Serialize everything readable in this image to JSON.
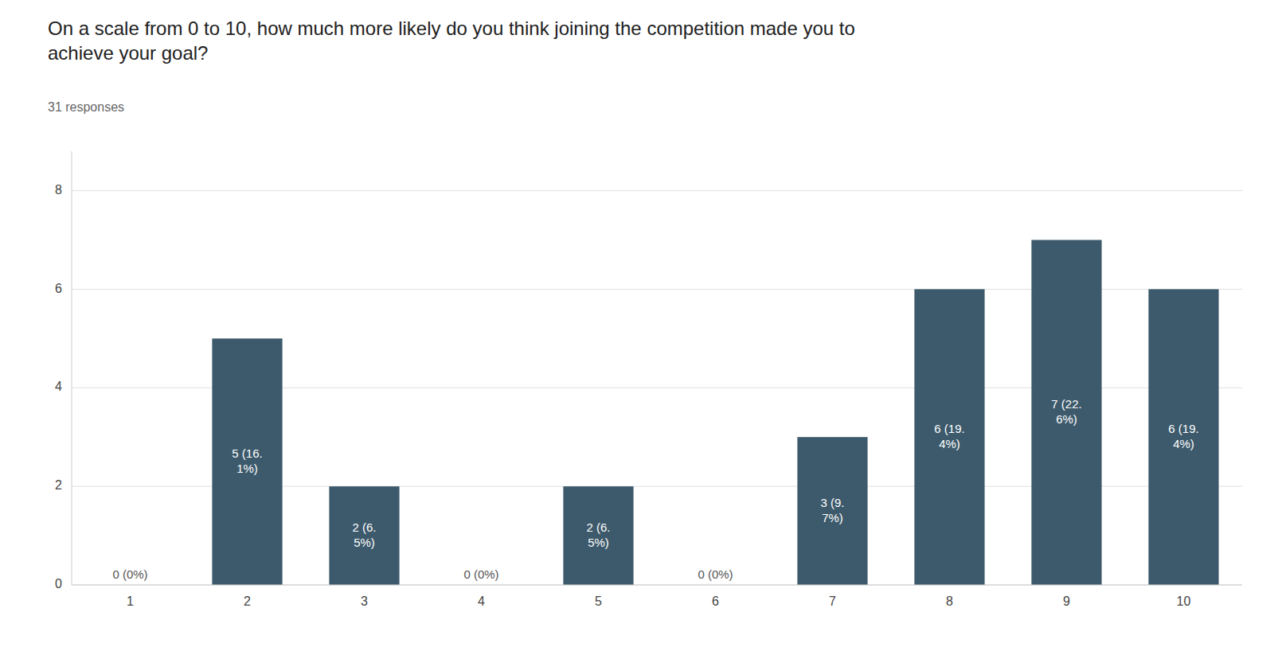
{
  "chart_data": {
    "type": "bar",
    "title": "On a scale from 0 to 10, how much more likely do you think joining the competition made you to\nachieve your goal?",
    "subtitle": "31 responses",
    "categories": [
      1,
      2,
      3,
      4,
      5,
      6,
      7,
      8,
      9,
      10
    ],
    "values": [
      0,
      5,
      2,
      0,
      2,
      0,
      3,
      6,
      7,
      6
    ],
    "value_labels": [
      "0 (0%)",
      "5 (16.\n1%)",
      "2 (6.\n5%)",
      "0 (0%)",
      "2 (6.\n5%)",
      "0 (0%)",
      "3 (9.\n7%)",
      "6 (19.\n4%)",
      "7 (22.\n6%)",
      "6 (19.\n4%)"
    ],
    "color": "#3d5a6c",
    "data_labels": true,
    "ylim": [
      0,
      8.8
    ],
    "yticks": [
      0,
      2,
      4,
      6,
      8
    ],
    "grid": true
  }
}
